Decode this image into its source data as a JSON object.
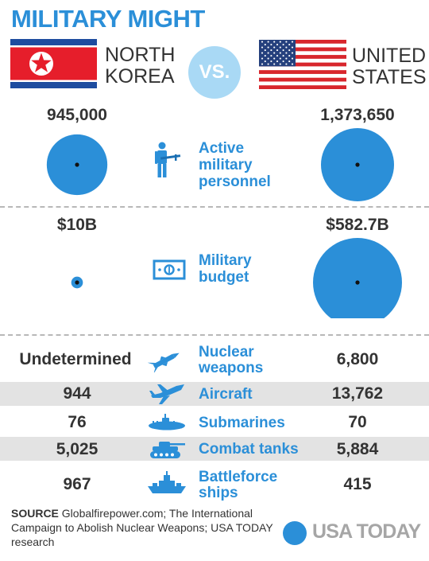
{
  "title": "MILITARY MIGHT",
  "countries": {
    "left": {
      "line1": "NORTH",
      "line2": "KOREA"
    },
    "vs": "VS.",
    "right": {
      "line1": "UNITED",
      "line2": "STATES"
    }
  },
  "colors": {
    "accent": "#2b8fd8",
    "vs_circle": "#a9d9f5",
    "stripe": "#e3e3e3",
    "text": "#333333",
    "nk_red": "#e61e2b",
    "nk_blue": "#1e4c9f",
    "us_red": "#d8262c",
    "us_blue": "#25407d"
  },
  "chart_data": [
    {
      "type": "bubble",
      "categories": [
        "Active military personnel",
        "Military budget"
      ],
      "series": [
        {
          "name": "NORTH KOREA",
          "values": [
            945000,
            10
          ],
          "labels": [
            "945,000",
            "$10B"
          ]
        },
        {
          "name": "UNITED STATES",
          "values": [
            1373650,
            582.7
          ],
          "labels": [
            "1,373,650",
            "$582.7B"
          ]
        }
      ]
    },
    {
      "type": "table",
      "columns": [
        "NORTH KOREA",
        "",
        "UNITED STATES"
      ],
      "rows": [
        {
          "metric_line1": "Nuclear",
          "metric_line2": "weapons",
          "icon": "missile-icon",
          "nk": "Undetermined",
          "us": "6,800",
          "striped": false
        },
        {
          "metric_line1": "Aircraft",
          "metric_line2": "",
          "icon": "jet-icon",
          "nk": "944",
          "us": "13,762",
          "striped": true
        },
        {
          "metric_line1": "Submarines",
          "metric_line2": "",
          "icon": "submarine-icon",
          "nk": "76",
          "us": "70",
          "striped": false
        },
        {
          "metric_line1": "Combat tanks",
          "metric_line2": "",
          "icon": "tank-icon",
          "nk": "5,025",
          "us": "5,884",
          "striped": true
        },
        {
          "metric_line1": "Battleforce",
          "metric_line2": "ships",
          "icon": "ship-icon",
          "nk": "967",
          "us": "415",
          "striped": false
        }
      ]
    }
  ],
  "bubbles": {
    "personnel": {
      "label_line1": "Active",
      "label_line2": "military",
      "label_line3": "personnel",
      "nk_value": "945,000",
      "us_value": "1,373,650"
    },
    "budget": {
      "label_line1": "Military",
      "label_line2": "budget",
      "nk_value": "$10B",
      "us_value": "$582.7B"
    }
  },
  "source": {
    "label": "SOURCE",
    "text": " Globalfirepower.com; The International Campaign to Abolish Nuclear Weapons; USA TODAY research"
  },
  "logo": {
    "text": "USA TODAY"
  }
}
